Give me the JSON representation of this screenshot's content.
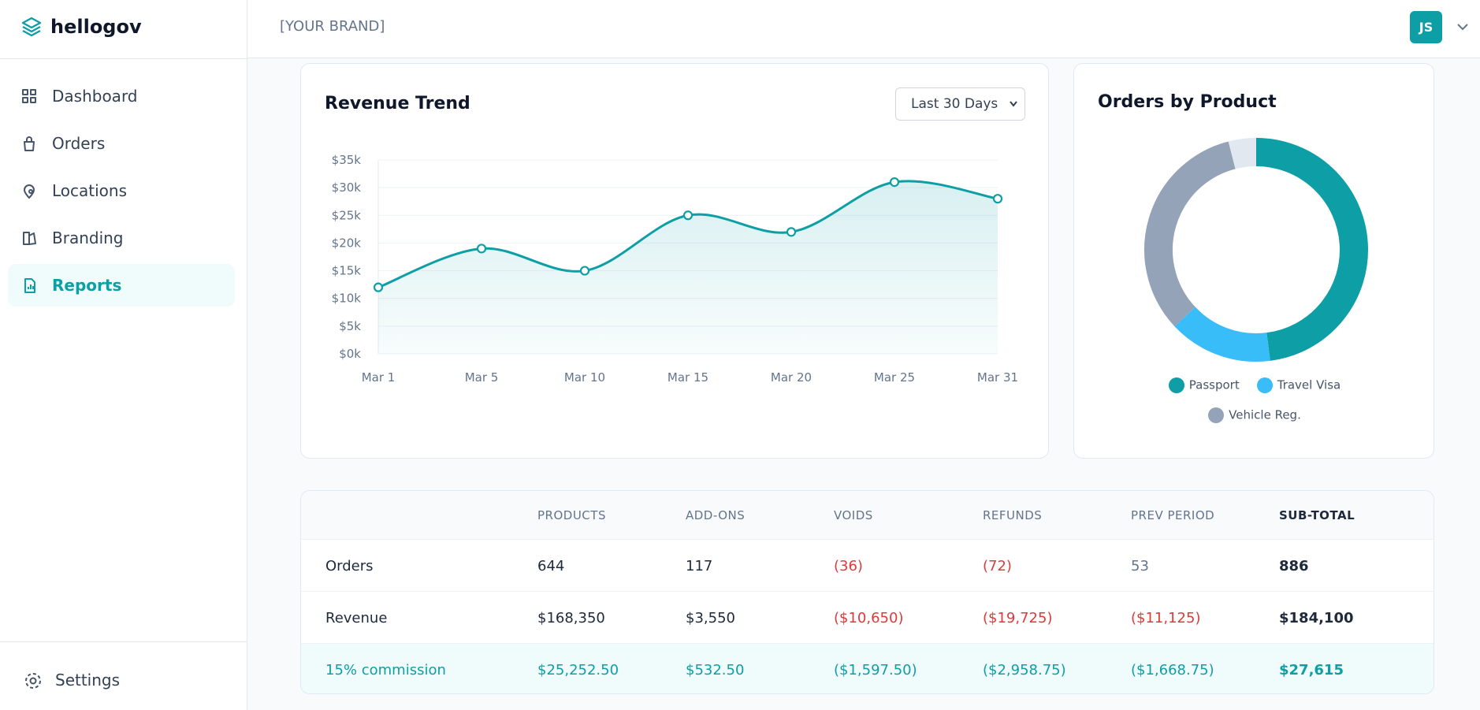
{
  "sidebar": {
    "brand": "hellogov",
    "nav": [
      "Dashboard",
      "Orders",
      "Locations",
      "Branding",
      "Reports"
    ],
    "active": 4,
    "settings": "Settings"
  },
  "header": {
    "brand": "[YOUR BRAND]",
    "user_initials": "JS"
  },
  "chart_data": [
    {
      "type": "line",
      "title": "Revenue Trend",
      "range_select": "Last 30 Days",
      "categories": [
        "Mar 1",
        "Mar 5",
        "Mar 10",
        "Mar 15",
        "Mar 20",
        "Mar 25",
        "Mar 31"
      ],
      "values": [
        12,
        19,
        15,
        25,
        22,
        31,
        28
      ],
      "color": "#0e9ea6",
      "ylim": [
        0,
        35
      ],
      "yticks": [
        {
          "value": 0,
          "label": "$0k"
        },
        {
          "value": 5,
          "label": "$5k"
        },
        {
          "value": 10,
          "label": "$10k"
        },
        {
          "value": 15,
          "label": "$15k"
        },
        {
          "value": 20,
          "label": "$20k"
        },
        {
          "value": 25,
          "label": "$25k"
        },
        {
          "value": 30,
          "label": "$30k"
        },
        {
          "value": 35,
          "label": "$35k"
        }
      ],
      "grid": true
    },
    {
      "type": "donut",
      "title": "Orders by Product",
      "categories": [
        "Passport",
        "Travel Visa",
        "Vehicle Reg.",
        null
      ],
      "values": [
        48,
        15,
        33,
        4
      ],
      "colors": [
        "#0e9ea6",
        "#38bdf8",
        "#94a3b8",
        "#e2e8f0"
      ]
    }
  ],
  "table": {
    "columns": [
      "PRODUCTS",
      "ADD-ONS",
      "VOIDS",
      "REFUNDS",
      "PREV PERIOD",
      "SUB-TOTAL"
    ],
    "rows": [
      [
        "Orders",
        "644",
        "117",
        "(36)",
        "(72)",
        "53",
        "886"
      ],
      [
        "Revenue",
        "$168,350",
        "$3,550",
        "($10,650)",
        "($19,725)",
        "($11,125)",
        "$184,100"
      ],
      [
        "15% commission",
        "$25,252.50",
        "$532.50",
        "($1,597.50)",
        "($2,958.75)",
        "($1,668.75)",
        "$27,615"
      ]
    ]
  }
}
